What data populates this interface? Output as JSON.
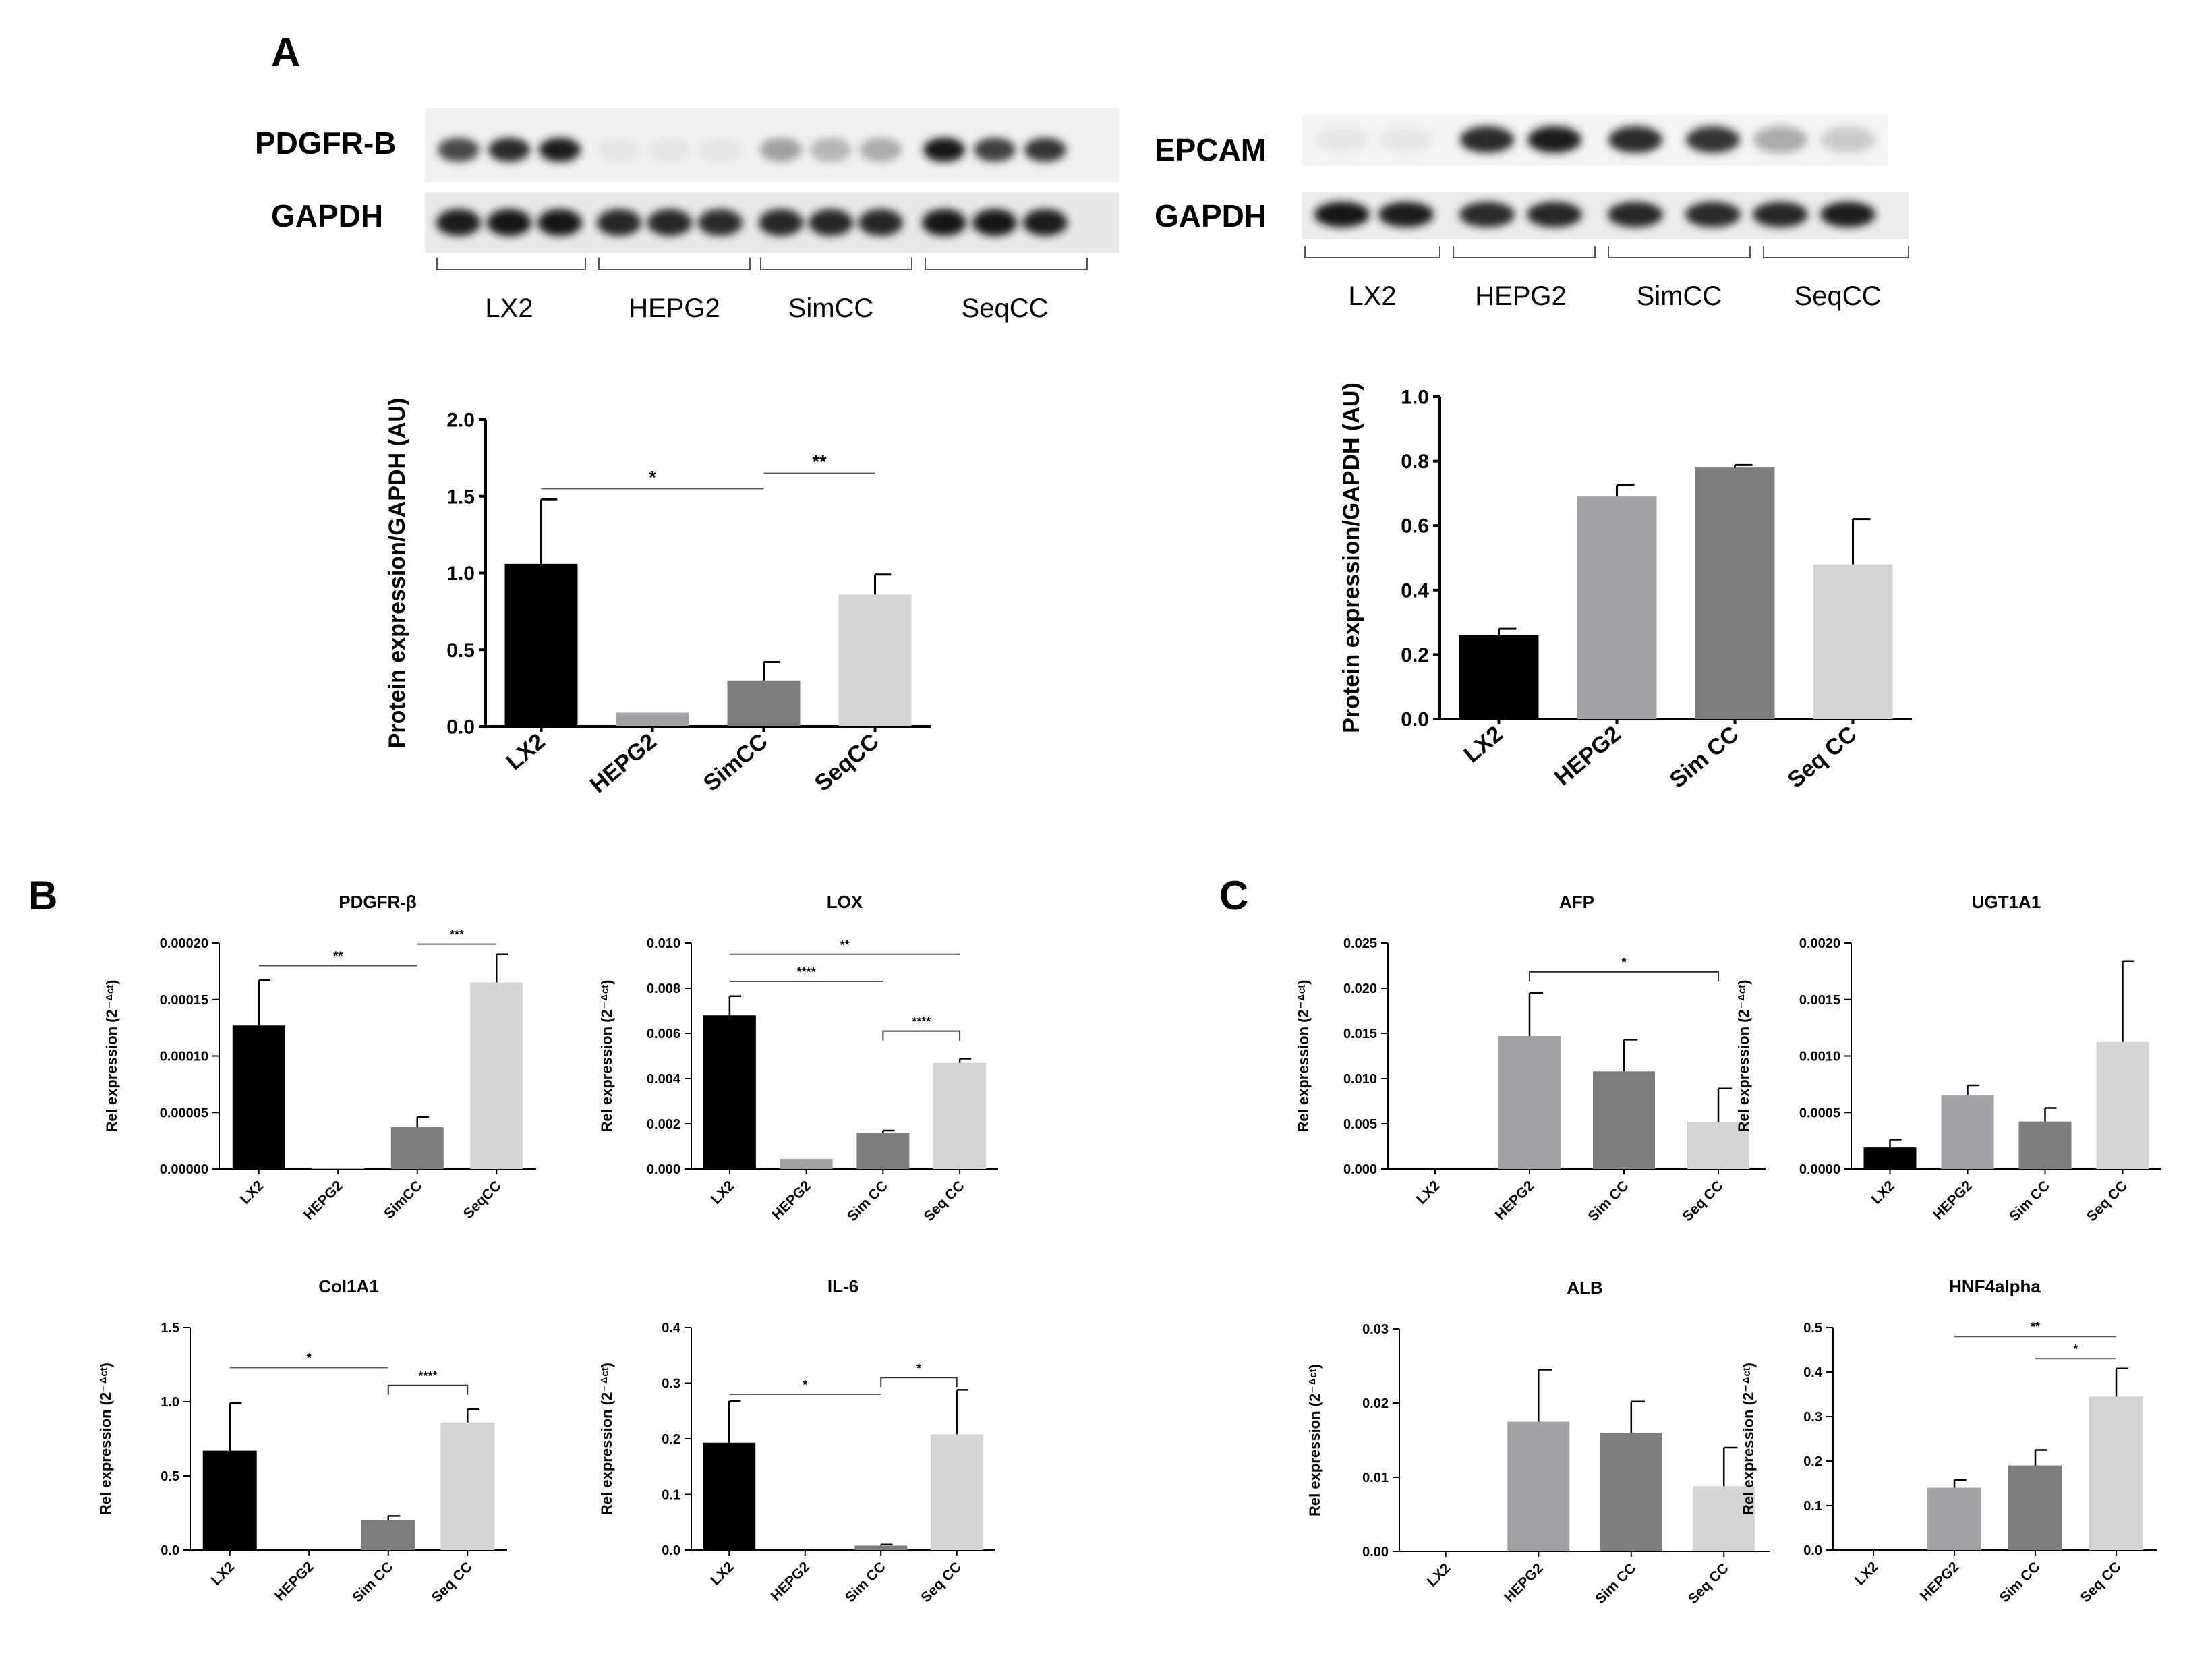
{
  "panels": {
    "A": "A",
    "B": "B",
    "C": "C"
  },
  "colors": {
    "LX2": "#000000",
    "HEPG2": "#a2a2a6",
    "Sim": "#7d7d80",
    "Seq": "#d4d4d7"
  },
  "blots": [
    {
      "target_label": "PDGFR-B",
      "control_label": "GAPDH",
      "groups": [
        "LX2",
        "HEPG2",
        "SimCC",
        "SeqCC"
      ]
    },
    {
      "target_label": "EPCAM",
      "control_label": "GAPDH",
      "groups": [
        "LX2",
        "HEPG2",
        "SimCC",
        "SeqCC"
      ]
    }
  ],
  "chart_data": [
    {
      "type": "bar",
      "title": "",
      "ylabel": "Protein expression/GAPDH (AU)",
      "categories": [
        "LX2",
        "HEPG2",
        "SimCC",
        "SeqCC"
      ],
      "values": [
        1.06,
        0.09,
        0.3,
        0.86
      ],
      "errors": [
        0.42,
        0.0,
        0.12,
        0.13
      ],
      "ylim": [
        0,
        2.0
      ],
      "yticks": [
        "0.0",
        "0.5",
        "1.0",
        "1.5",
        "2.0"
      ],
      "significance": [
        {
          "from": 0,
          "to": 2,
          "label": "*",
          "y": 1.55
        },
        {
          "from": 2,
          "to": 3,
          "label": "**",
          "y": 1.65
        }
      ]
    },
    {
      "type": "bar",
      "title": "",
      "ylabel": "Protein expression/GAPDH (AU)",
      "categories": [
        "LX2",
        "HEPG2",
        "Sim CC",
        "Seq CC"
      ],
      "values": [
        0.26,
        0.69,
        0.78,
        0.48
      ],
      "errors": [
        0.02,
        0.035,
        0.008,
        0.14
      ],
      "ylim": [
        0,
        1.0
      ],
      "yticks": [
        "0.0",
        "0.2",
        "0.4",
        "0.6",
        "0.8",
        "1.0"
      ],
      "significance": []
    },
    {
      "type": "bar",
      "title": "PDGFR-β",
      "ylabel": "Rel expression (2⁻ᐞᶜᵗ)",
      "categories": [
        "LX2",
        "HEPG2",
        "SimCC",
        "SeqCC"
      ],
      "values": [
        0.000127,
        1e-06,
        3.7e-05,
        0.000165
      ],
      "errors": [
        4e-05,
        0.0,
        9e-06,
        2.5e-05
      ],
      "ylim": [
        0,
        0.0002
      ],
      "yticks": [
        "0.00000",
        "0.00005",
        "0.00010",
        "0.00015",
        "0.00020"
      ],
      "significance": [
        {
          "from": 0,
          "to": 2,
          "label": "**",
          "y": 0.00018
        },
        {
          "from": 2,
          "to": 3,
          "label": "***",
          "y": 0.000199
        }
      ]
    },
    {
      "type": "bar",
      "title": "LOX",
      "ylabel": "Rel expression (2⁻ᐞᶜᵗ)",
      "categories": [
        "LX2",
        "HEPG2",
        "Sim CC",
        "Seq CC"
      ],
      "values": [
        0.0068,
        0.00045,
        0.0016,
        0.0047
      ],
      "errors": [
        0.00085,
        0.0,
        0.0001,
        0.00018
      ],
      "ylim": [
        0,
        0.01
      ],
      "yticks": [
        "0.000",
        "0.002",
        "0.004",
        "0.006",
        "0.008",
        "0.010"
      ],
      "significance": [
        {
          "from": 0,
          "to": 3,
          "label": "**",
          "y": 0.0095
        },
        {
          "from": 0,
          "to": 2,
          "label": "****",
          "y": 0.0083
        },
        {
          "from": 2,
          "to": 3,
          "label": "****",
          "y": 0.0061,
          "bracket": true
        }
      ]
    },
    {
      "type": "bar",
      "title": "Col1A1",
      "ylabel": "Rel expression (2⁻ᐞᶜᵗ)",
      "categories": [
        "LX2",
        "HEPG2",
        "Sim CC",
        "Seq CC"
      ],
      "values": [
        0.67,
        0.0,
        0.2,
        0.86
      ],
      "errors": [
        0.32,
        0.0,
        0.03,
        0.09
      ],
      "ylim": [
        0,
        1.5
      ],
      "yticks": [
        "0.0",
        "0.5",
        "1.0",
        "1.5"
      ],
      "significance": [
        {
          "from": 0,
          "to": 2,
          "label": "*",
          "y": 1.23
        },
        {
          "from": 2,
          "to": 3,
          "label": "****",
          "y": 1.11,
          "bracket": true
        }
      ]
    },
    {
      "type": "bar",
      "title": "IL-6",
      "ylabel": "Rel expression (2⁻ᐞᶜᵗ)",
      "categories": [
        "LX2",
        "HEPG2",
        "Sim CC",
        "Seq CC"
      ],
      "values": [
        0.193,
        0.0,
        0.008,
        0.208
      ],
      "errors": [
        0.075,
        0.0,
        0.002,
        0.08
      ],
      "ylim": [
        0,
        0.4
      ],
      "yticks": [
        "0.0",
        "0.1",
        "0.2",
        "0.3",
        "0.4"
      ],
      "significance": [
        {
          "from": 0,
          "to": 2,
          "label": "*",
          "y": 0.28
        },
        {
          "from": 2,
          "to": 3,
          "label": "*",
          "y": 0.31,
          "bracket": true
        }
      ]
    },
    {
      "type": "bar",
      "title": "AFP",
      "ylabel": "Rel expression (2⁻ᐞᶜᵗ)",
      "categories": [
        "LX2",
        "HEPG2",
        "Sim CC",
        "Seq CC"
      ],
      "values": [
        0.0,
        0.0147,
        0.0108,
        0.0052
      ],
      "errors": [
        0.0,
        0.0048,
        0.0035,
        0.0037
      ],
      "ylim": [
        0,
        0.025
      ],
      "yticks": [
        "0.000",
        "0.005",
        "0.010",
        "0.015",
        "0.020",
        "0.025"
      ],
      "significance": [
        {
          "from": 1,
          "to": 3,
          "label": "*",
          "y": 0.0218,
          "bracket": true
        }
      ]
    },
    {
      "type": "bar",
      "title": "UGT1A1",
      "ylabel": "Rel expression (2⁻ᐞᶜᵗ)",
      "categories": [
        "LX2",
        "HEPG2",
        "Sim CC",
        "Seq CC"
      ],
      "values": [
        0.00019,
        0.00065,
        0.00042,
        0.00113
      ],
      "errors": [
        7e-05,
        9e-05,
        0.00012,
        0.00071
      ],
      "ylim": [
        0,
        0.002
      ],
      "yticks": [
        "0.0000",
        "0.0005",
        "0.0010",
        "0.0015",
        "0.0020"
      ],
      "significance": []
    },
    {
      "type": "bar",
      "title": "ALB",
      "ylabel": "Rel expression (2⁻ᐞᶜᵗ)",
      "categories": [
        "LX2",
        "HEPG2",
        "Sim CC",
        "Seq CC"
      ],
      "values": [
        0.0,
        0.0175,
        0.016,
        0.0088
      ],
      "errors": [
        0.0,
        0.007,
        0.0042,
        0.0052
      ],
      "ylim": [
        0,
        0.03
      ],
      "yticks": [
        "0.00",
        "0.01",
        "0.02",
        "0.03"
      ],
      "significance": []
    },
    {
      "type": "bar",
      "title": "HNF4alpha",
      "ylabel": "Rel expression (2⁻ᐞᶜᵗ)",
      "categories": [
        "LX2",
        "HEPG2",
        "Sim CC",
        "Seq CC"
      ],
      "values": [
        0.0,
        0.14,
        0.19,
        0.345
      ],
      "errors": [
        0.0,
        0.018,
        0.035,
        0.063
      ],
      "ylim": [
        0,
        0.5
      ],
      "yticks": [
        "0.0",
        "0.1",
        "0.2",
        "0.3",
        "0.4",
        "0.5"
      ],
      "significance": [
        {
          "from": 1,
          "to": 3,
          "label": "**",
          "y": 0.48
        },
        {
          "from": 2,
          "to": 3,
          "label": "*",
          "y": 0.43
        }
      ]
    }
  ]
}
